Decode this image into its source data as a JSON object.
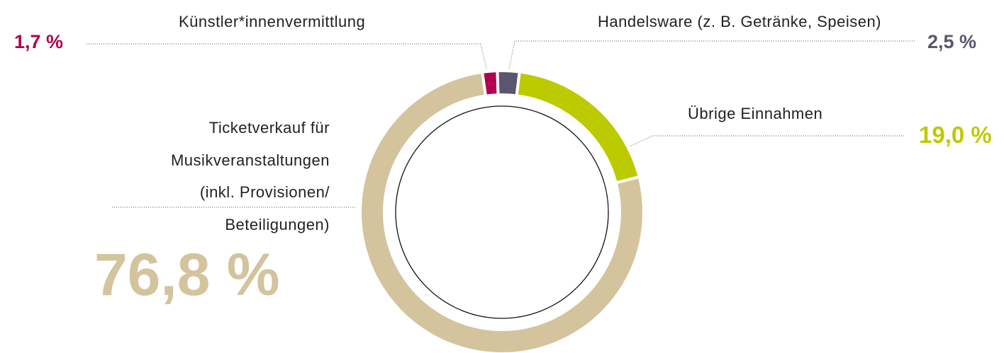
{
  "chart_data": {
    "type": "donut",
    "categories": [
      "Künstler*innenvermittlung",
      "Handelsware (z. B. Getränke, Speisen)",
      "Übrige Einnahmen",
      "Ticketverkauf für\nMusikveranstaltungen\n(inkl. Provisionen/\nBeteiligungen)"
    ],
    "values": [
      1.7,
      2.5,
      19.0,
      76.8
    ],
    "value_labels": [
      "1,7 %",
      "2,5 %",
      "19,0 %",
      "76,8 %"
    ],
    "colors": [
      "#b0004f",
      "#5c5570",
      "#bccb00",
      "#d3c49e"
    ]
  }
}
